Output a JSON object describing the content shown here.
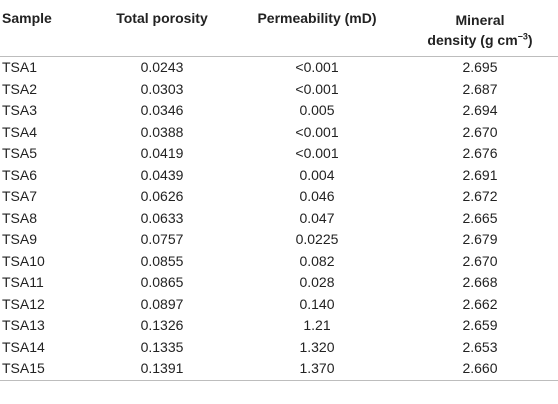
{
  "table": {
    "headers": {
      "sample": "Sample",
      "porosity": "Total porosity",
      "permeability": "Permeability (mD)",
      "mineral_line1": "Mineral",
      "mineral_line2_prefix": "density (g cm",
      "mineral_line2_sup": "−3",
      "mineral_line2_suffix": ")"
    },
    "rows": [
      [
        "TSA1",
        "0.0243",
        "<0.001",
        "2.695"
      ],
      [
        "TSA2",
        "0.0303",
        "<0.001",
        "2.687"
      ],
      [
        "TSA3",
        "0.0346",
        "0.005",
        "2.694"
      ],
      [
        "TSA4",
        "0.0388",
        "<0.001",
        "2.670"
      ],
      [
        "TSA5",
        "0.0419",
        "<0.001",
        "2.676"
      ],
      [
        "TSA6",
        "0.0439",
        "0.004",
        "2.691"
      ],
      [
        "TSA7",
        "0.0626",
        "0.046",
        "2.672"
      ],
      [
        "TSA8",
        "0.0633",
        "0.047",
        "2.665"
      ],
      [
        "TSA9",
        "0.0757",
        "0.0225",
        "2.679"
      ],
      [
        "TSA10",
        "0.0855",
        "0.082",
        "2.670"
      ],
      [
        "TSA11",
        "0.0865",
        "0.028",
        "2.668"
      ],
      [
        "TSA12",
        "0.0897",
        "0.140",
        "2.662"
      ],
      [
        "TSA13",
        "0.1326",
        "1.21",
        "2.659"
      ],
      [
        "TSA14",
        "0.1335",
        "1.320",
        "2.653"
      ],
      [
        "TSA15",
        "0.1391",
        "1.370",
        "2.660"
      ]
    ]
  }
}
